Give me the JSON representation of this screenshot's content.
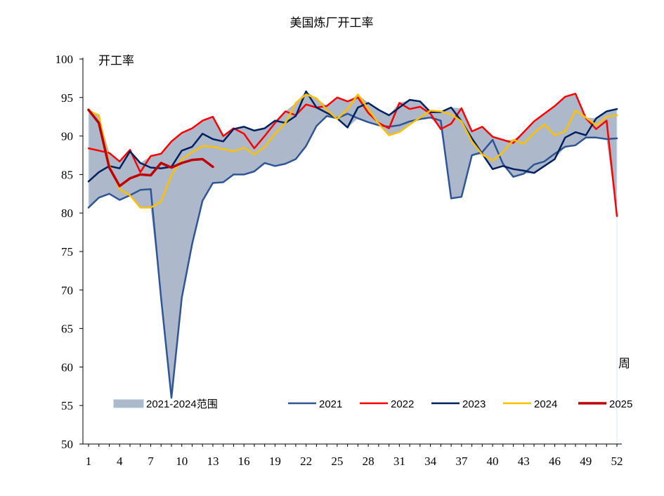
{
  "chart_data": {
    "type": "line",
    "title": "美国炼厂开工率",
    "ylabel": "开工率",
    "xlabel": "周",
    "ylim": [
      50,
      100
    ],
    "yticks": [
      50,
      55,
      60,
      65,
      70,
      75,
      80,
      85,
      90,
      95,
      100
    ],
    "xlim": [
      1,
      52
    ],
    "xticks": [
      1,
      4,
      7,
      10,
      13,
      16,
      19,
      22,
      25,
      28,
      31,
      34,
      37,
      40,
      43,
      46,
      49,
      52
    ],
    "grid": false,
    "legend_position": "bottom",
    "range_band": {
      "name": "2021-2024范围",
      "color": "#adb9ca"
    },
    "series": [
      {
        "name": "2021",
        "color": "#2f5597",
        "values": [
          80.7,
          82.0,
          82.5,
          81.7,
          82.3,
          83.0,
          83.1,
          69.0,
          56.0,
          69.0,
          76.0,
          81.6,
          83.9,
          84.0,
          85.0,
          85.0,
          85.4,
          86.5,
          86.1,
          86.4,
          87.0,
          88.7,
          91.3,
          92.6,
          92.3,
          92.9,
          92.3,
          91.8,
          91.4,
          91.2,
          91.4,
          91.9,
          92.2,
          92.4,
          92.0,
          81.9,
          82.1,
          87.5,
          87.9,
          89.5,
          86.4,
          84.7,
          85.1,
          86.3,
          86.7,
          87.7,
          88.6,
          88.8,
          89.8,
          89.8,
          89.6,
          89.7
        ]
      },
      {
        "name": "2022",
        "color": "#ff0000",
        "values": [
          88.4,
          88.1,
          87.8,
          86.7,
          88.2,
          85.3,
          87.4,
          87.7,
          89.3,
          90.4,
          91.0,
          92.0,
          92.5,
          90.0,
          91.0,
          90.3,
          88.4,
          90.0,
          91.7,
          93.2,
          92.7,
          94.1,
          93.7,
          93.9,
          95.0,
          94.5,
          95.0,
          93.0,
          91.7,
          91.0,
          94.3,
          93.5,
          93.8,
          92.9,
          90.9,
          91.6,
          93.6,
          90.6,
          91.2,
          89.9,
          89.5,
          89.1,
          90.5,
          91.9,
          92.9,
          93.9,
          95.1,
          95.5,
          92.3,
          90.9,
          92.0,
          79.6
        ]
      },
      {
        "name": "2023",
        "color": "#002060",
        "values": [
          84.1,
          85.3,
          86.1,
          85.8,
          88.0,
          86.5,
          85.9,
          85.8,
          86.0,
          88.1,
          88.6,
          90.3,
          89.6,
          89.3,
          90.9,
          91.2,
          90.7,
          91.0,
          92.0,
          91.7,
          92.6,
          95.8,
          93.7,
          93.0,
          92.3,
          91.1,
          93.7,
          94.3,
          93.4,
          92.7,
          93.7,
          94.7,
          94.5,
          93.1,
          93.1,
          93.7,
          91.9,
          89.7,
          87.7,
          85.7,
          86.1,
          85.7,
          85.5,
          85.2,
          86.1,
          87.0,
          89.8,
          90.5,
          90.1,
          92.3,
          93.2,
          93.5
        ]
      },
      {
        "name": "2024",
        "color": "#ffc000",
        "values": [
          93.3,
          92.7,
          86.2,
          83.1,
          82.3,
          80.7,
          80.7,
          81.5,
          84.9,
          87.0,
          87.9,
          88.7,
          88.6,
          88.3,
          88.0,
          88.5,
          87.6,
          88.6,
          90.3,
          91.7,
          94.3,
          95.4,
          94.9,
          93.4,
          92.2,
          93.5,
          95.4,
          93.5,
          91.6,
          90.1,
          90.5,
          91.5,
          92.4,
          93.3,
          93.2,
          92.8,
          91.9,
          89.3,
          87.6,
          86.8,
          87.9,
          89.5,
          89.0,
          90.4,
          91.5,
          90.1,
          90.6,
          93.3,
          92.4,
          91.4,
          92.5,
          92.7
        ]
      },
      {
        "name": "2025",
        "color": "#c00000",
        "values": [
          93.4,
          91.7,
          85.9,
          83.5,
          84.5,
          85.0,
          84.9,
          86.5,
          85.9,
          86.5,
          86.9,
          87.0,
          86.0
        ]
      }
    ]
  }
}
